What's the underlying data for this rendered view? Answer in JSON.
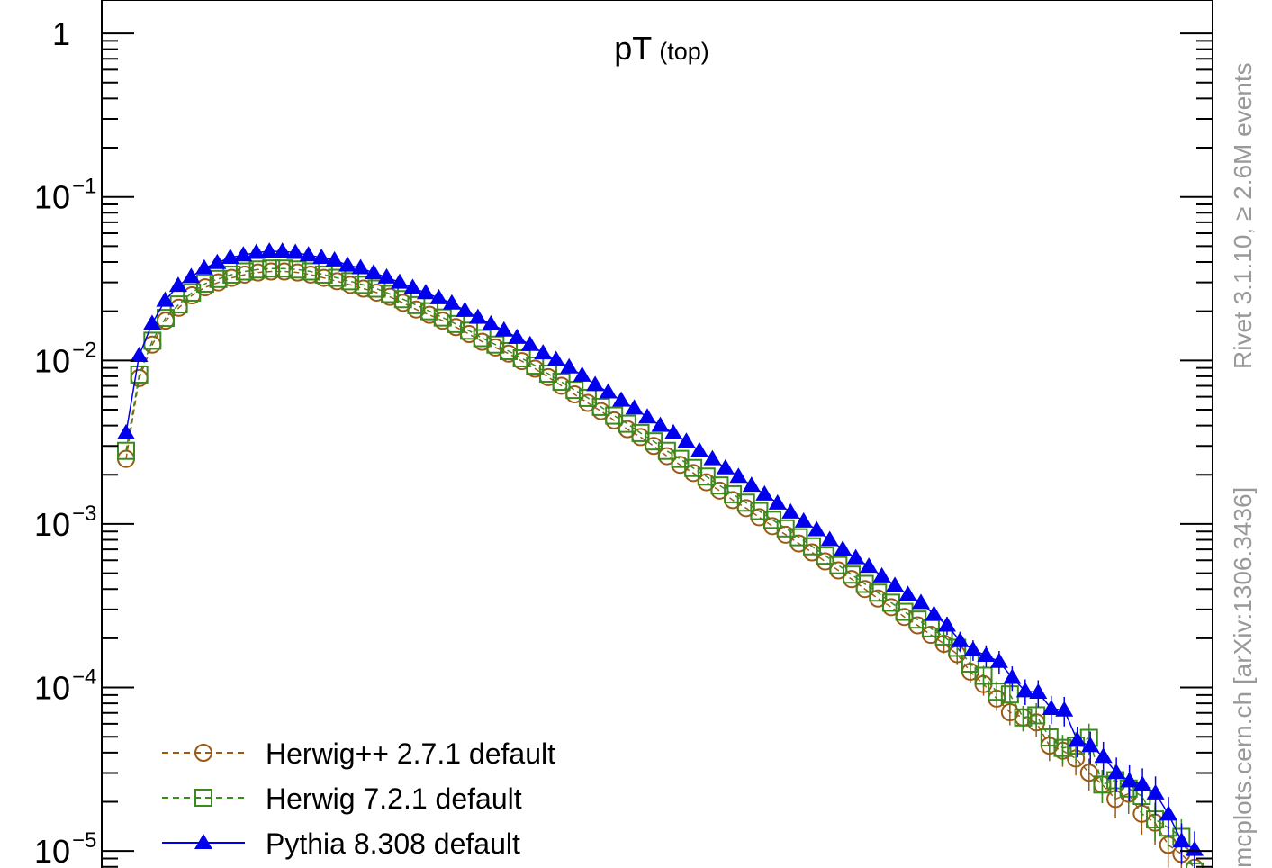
{
  "chart_data": {
    "type": "scatter",
    "title": "pT",
    "title_suffix": "(top)",
    "side_label_top": "Rivet 3.1.10, ≥ 2.6M events",
    "side_label_bottom": "mcplots.cern.ch [arXiv:1306.3436]",
    "y_scale": "log",
    "ylim": [
      7.3e-06,
      1.6
    ],
    "y_tick_labels": [
      {
        "value": 1,
        "label": "1"
      },
      {
        "value": 0.1,
        "label": "10",
        "exp": "−1"
      },
      {
        "value": 0.01,
        "label": "10",
        "exp": "−2"
      },
      {
        "value": 0.001,
        "label": "10",
        "exp": "−3"
      },
      {
        "value": 0.0001,
        "label": "10",
        "exp": "−4"
      },
      {
        "value": 1e-05,
        "label": "10",
        "exp": "−5"
      }
    ],
    "legend_position": "bottom-left",
    "series": [
      {
        "name": "Herwig++ 2.7.1 default",
        "color": "#9a5a14",
        "marker": "open-circle",
        "line": "dashed",
        "values": [
          0.0025,
          0.0078,
          0.0125,
          0.0175,
          0.021,
          0.025,
          0.028,
          0.03,
          0.032,
          0.0335,
          0.0345,
          0.035,
          0.035,
          0.0345,
          0.0335,
          0.032,
          0.0305,
          0.029,
          0.0275,
          0.026,
          0.0245,
          0.0225,
          0.0205,
          0.019,
          0.0175,
          0.016,
          0.0145,
          0.013,
          0.012,
          0.011,
          0.0099,
          0.0089,
          0.0079,
          0.007,
          0.0062,
          0.0055,
          0.0049,
          0.0043,
          0.0038,
          0.0034,
          0.003,
          0.0026,
          0.0023,
          0.00205,
          0.0018,
          0.0016,
          0.0014,
          0.00125,
          0.0011,
          0.00097,
          0.00086,
          0.00076,
          0.00067,
          0.00059,
          0.00052,
          0.00046,
          0.0004,
          0.00035,
          0.00031,
          0.00027,
          0.00024,
          0.00021,
          0.000185,
          0.00016,
          0.000125,
          0.000105,
          8.55e-05,
          7.06e-05,
          6.56e-05,
          6.12e-05,
          4.41e-05,
          4.11e-05,
          3.68e-05,
          3.01e-05,
          2.55e-05,
          2.08e-05,
          2.24e-05,
          1.69e-05,
          1.49e-05,
          1.09e-05,
          9.6e-06,
          7.9e-06
        ]
      },
      {
        "name": "Herwig 7.2.1 default",
        "color": "#3a8a1e",
        "marker": "open-square",
        "line": "dashed",
        "values": [
          0.0028,
          0.0082,
          0.0132,
          0.0182,
          0.022,
          0.026,
          0.0295,
          0.0315,
          0.0335,
          0.035,
          0.036,
          0.0365,
          0.0365,
          0.036,
          0.035,
          0.0335,
          0.032,
          0.0305,
          0.029,
          0.0275,
          0.0255,
          0.0237,
          0.0218,
          0.02,
          0.0183,
          0.0167,
          0.0152,
          0.0137,
          0.0125,
          0.0114,
          0.0103,
          0.0093,
          0.0083,
          0.0074,
          0.0066,
          0.0059,
          0.0052,
          0.0046,
          0.0041,
          0.0036,
          0.0032,
          0.0028,
          0.0025,
          0.0022,
          0.00195,
          0.00172,
          0.00152,
          0.00135,
          0.0012,
          0.00106,
          0.00094,
          0.00083,
          0.00073,
          0.00064,
          0.00056,
          0.00049,
          0.00043,
          0.00038,
          0.00033,
          0.00029,
          0.00026,
          0.00023,
          0.000205,
          0.000175,
          0.00014,
          0.000118,
          9.43e-05,
          9.08e-05,
          6.56e-05,
          6.76e-05,
          4.95e-05,
          4.27e-05,
          4.41e-05,
          4.92e-05,
          2.55e-05,
          2.71e-05,
          2.41e-05,
          2.17e-05,
          1.56e-05,
          1.39e-05,
          1.22e-05,
          7.5e-06
        ]
      },
      {
        "name": "Pythia 8.308 default",
        "color": "#0000ee",
        "marker": "filled-triangle",
        "line": "solid",
        "values": [
          0.0036,
          0.0107,
          0.0168,
          0.0233,
          0.0287,
          0.0325,
          0.0367,
          0.0396,
          0.0426,
          0.0441,
          0.0457,
          0.0465,
          0.0465,
          0.0457,
          0.0441,
          0.0426,
          0.0411,
          0.0382,
          0.0368,
          0.0343,
          0.0323,
          0.03,
          0.0279,
          0.0259,
          0.0241,
          0.0224,
          0.0202,
          0.0183,
          0.0167,
          0.0153,
          0.0138,
          0.0125,
          0.0111,
          0.0101,
          0.0091,
          0.0081,
          0.0071,
          0.0064,
          0.0057,
          0.0051,
          0.0045,
          0.004,
          0.0036,
          0.0032,
          0.0028,
          0.0025,
          0.0022,
          0.00195,
          0.00172,
          0.00152,
          0.00134,
          0.00118,
          0.00104,
          0.00092,
          0.0008,
          0.0007,
          0.00062,
          0.00055,
          0.00048,
          0.00042,
          0.00037,
          0.00033,
          0.00028,
          0.00024,
          0.000193,
          0.00017,
          0.000157,
          0.000144,
          0.000115,
          9.52e-05,
          9.33e-05,
          7.43e-05,
          7.27e-05,
          4.75e-05,
          4.4e-05,
          3.78e-05,
          3.01e-05,
          2.68e-05,
          2.55e-05,
          2.26e-05,
          1.68e-05,
          1.15e-05,
          1.02e-05
        ]
      }
    ]
  }
}
